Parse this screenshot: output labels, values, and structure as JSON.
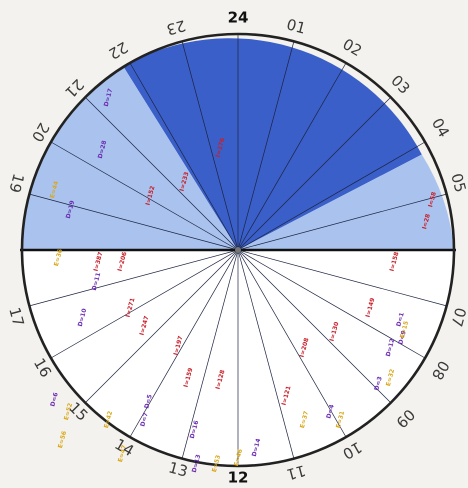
{
  "hour_labels": {
    "24": "24",
    "01": "01",
    "02": "02",
    "03": "03",
    "04": "04",
    "05": "05",
    "06": "",
    "07": "07",
    "08": "08",
    "09": "09",
    "10": "10",
    "11": "11",
    "12": "12",
    "13": "13",
    "14": "14",
    "15": "15",
    "16": "16",
    "17": "17",
    "18": "",
    "19": "19",
    "20": "20",
    "21": "21",
    "22": "22",
    "23": "23"
  },
  "zones": [
    {
      "name": "night",
      "color": "#3a5fc8"
    },
    {
      "name": "twilight",
      "color": "#a9c3ee"
    },
    {
      "name": "day",
      "color": "#ffffff"
    }
  ],
  "segment_labels": [
    {
      "text": "D=13",
      "color": "#6a2bb0"
    },
    {
      "text": "D=16",
      "color": "#6a2bb0"
    },
    {
      "text": "D=5",
      "color": "#6a2bb0"
    },
    {
      "text": "D=7",
      "color": "#6a2bb0"
    },
    {
      "text": "D=14",
      "color": "#6a2bb0"
    },
    {
      "text": "D=4",
      "color": "#6a2bb0"
    },
    {
      "text": "D=3",
      "color": "#6a2bb0"
    },
    {
      "text": "D=12",
      "color": "#6a2bb0"
    },
    {
      "text": "D=9",
      "color": "#6a2bb0"
    },
    {
      "text": "D=1",
      "color": "#6a2bb0"
    },
    {
      "text": "D=11",
      "color": "#6a2bb0"
    },
    {
      "text": "D=19",
      "color": "#6a2bb0"
    },
    {
      "text": "D=28",
      "color": "#6a2bb0"
    },
    {
      "text": "D=17",
      "color": "#6a2bb0"
    },
    {
      "text": "D=10",
      "color": "#6a2bb0"
    },
    {
      "text": "D=6",
      "color": "#6a2bb0"
    },
    {
      "text": "I=271",
      "color": "#c8202a"
    },
    {
      "text": "I=247",
      "color": "#c8202a"
    },
    {
      "text": "I=197",
      "color": "#c8202a"
    },
    {
      "text": "I=159",
      "color": "#c8202a"
    },
    {
      "text": "I=128",
      "color": "#c8202a"
    },
    {
      "text": "I=121",
      "color": "#c8202a"
    },
    {
      "text": "I=208",
      "color": "#c8202a"
    },
    {
      "text": "I=130",
      "color": "#c8202a"
    },
    {
      "text": "I=149",
      "color": "#c8202a"
    },
    {
      "text": "I=158",
      "color": "#c8202a"
    },
    {
      "text": "I=206",
      "color": "#c8202a"
    },
    {
      "text": "I=152",
      "color": "#c8202a"
    },
    {
      "text": "I=233",
      "color": "#c8202a"
    },
    {
      "text": "I=176",
      "color": "#c8202a"
    },
    {
      "text": "I=387",
      "color": "#c8202a"
    },
    {
      "text": "I=28",
      "color": "#c8202a"
    },
    {
      "text": "I=58",
      "color": "#c8202a"
    },
    {
      "text": "E=56",
      "color": "#d9a81e"
    },
    {
      "text": "E=52",
      "color": "#d9a81e"
    },
    {
      "text": "E=42",
      "color": "#d9a81e"
    },
    {
      "text": "E=47",
      "color": "#d9a81e"
    },
    {
      "text": "E=53",
      "color": "#d9a81e"
    },
    {
      "text": "E=46",
      "color": "#d9a81e"
    },
    {
      "text": "E=37",
      "color": "#d9a81e"
    },
    {
      "text": "E=31",
      "color": "#d9a81e"
    },
    {
      "text": "E=32",
      "color": "#d9a81e"
    },
    {
      "text": "E=15",
      "color": "#d9a81e"
    },
    {
      "text": "E=36",
      "color": "#d9a81e"
    },
    {
      "text": "E=44",
      "color": "#d9a81e"
    }
  ]
}
